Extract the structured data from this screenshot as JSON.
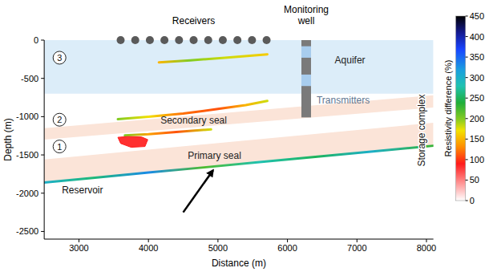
{
  "chart_data": {
    "type": "section",
    "x_label": "Distance (m)",
    "y_label": "Depth (m)",
    "xlim": [
      2500,
      8100
    ],
    "xticks": [
      3000,
      4000,
      5000,
      6000,
      7000,
      8000
    ],
    "ylim": [
      -2600,
      0
    ],
    "yticks": [
      -2500,
      -2000,
      -1500,
      -1000,
      -500,
      0
    ],
    "layers": [
      {
        "label": "Aquifer",
        "label_at": [
          6900,
          -300
        ],
        "x": [
          2500,
          8100
        ],
        "top": [
          0,
          0
        ],
        "bottom": [
          -700,
          -700
        ],
        "color": "#dcedf9"
      },
      {
        "label": "Secondary seal",
        "label_at": [
          4650,
          -1090
        ],
        "x": [
          2500,
          8100
        ],
        "top": [
          -1150,
          -720
        ],
        "bottom": [
          -1300,
          -880
        ],
        "color": "#fbe4d8"
      },
      {
        "label": "Primary seal",
        "label_at": [
          4950,
          -1550
        ],
        "x": [
          2500,
          8100
        ],
        "top": [
          -1560,
          -1080
        ],
        "bottom": [
          -1860,
          -1380
        ],
        "color": "#fbe4d8"
      }
    ],
    "series": [
      {
        "type": "line",
        "label": "3",
        "label_at": [
          2720,
          -230
        ],
        "x": [
          4150,
          4600,
          5100,
          5710
        ],
        "values": [
          -290,
          -265,
          -230,
          -186
        ],
        "resistivity": [
          150,
          200,
          180,
          160
        ]
      },
      {
        "type": "line",
        "label": "2",
        "label_at": [
          2720,
          -1040
        ],
        "x": [
          3560,
          4000,
          4500,
          5000,
          5400,
          5710
        ],
        "values": [
          -1033,
          -1000,
          -960,
          -900,
          -850,
          -795
        ],
        "resistivity": [
          200,
          170,
          120,
          110,
          150,
          180
        ]
      },
      {
        "type": "line",
        "label": "1",
        "label_at": [
          2720,
          -1390
        ],
        "x": [
          3660,
          4000,
          4400,
          4900
        ],
        "values": [
          -1245,
          -1230,
          -1200,
          -1167
        ],
        "resistivity": [
          200,
          140,
          110,
          180
        ]
      },
      {
        "type": "area",
        "x": [
          3560,
          3700,
          3900,
          3990,
          3950,
          3750,
          3600
        ],
        "values": [
          -1270,
          -1260,
          -1265,
          -1300,
          -1390,
          -1400,
          -1350
        ],
        "resistivity": 90
      },
      {
        "type": "line",
        "x": [
          2500,
          3200,
          4000,
          4800,
          5600,
          6400,
          7200,
          8100
        ],
        "values": [
          -1860,
          -1800,
          -1731,
          -1663,
          -1594,
          -1526,
          -1457,
          -1380
        ],
        "resistivity": [
          300,
          260,
          330,
          220,
          280,
          250,
          300,
          230
        ]
      }
    ],
    "receivers": {
      "label": "Receivers",
      "x": [
        3600,
        3810,
        4020,
        4230,
        4440,
        4650,
        4860,
        5070,
        5280,
        5490,
        5700
      ],
      "depth": 0
    },
    "well": {
      "label": "Monitoring well",
      "x": 6270,
      "top": 0,
      "bottom": -1010,
      "transmitters": [
        {
          "top": -80,
          "bottom": -230
        },
        {
          "top": -450,
          "bottom": -600
        }
      ],
      "transmitters_label": "Transmitters",
      "transmitters_label_at": [
        6420,
        -830
      ]
    },
    "annotations": [
      {
        "text": "Reservoir",
        "at": [
          3050,
          -2000
        ]
      },
      {
        "text": "Storage complex",
        "at": [
          7930,
          -1180
        ],
        "vertical": true
      }
    ],
    "arrow": {
      "from": [
        4500,
        -2250
      ],
      "to": [
        4930,
        -1700
      ]
    },
    "colorbar": {
      "title": "Resistivity difference (%)",
      "range": [
        0,
        450
      ],
      "ticks": [
        0,
        50,
        100,
        150,
        200,
        250,
        300,
        350,
        400,
        450
      ]
    }
  }
}
